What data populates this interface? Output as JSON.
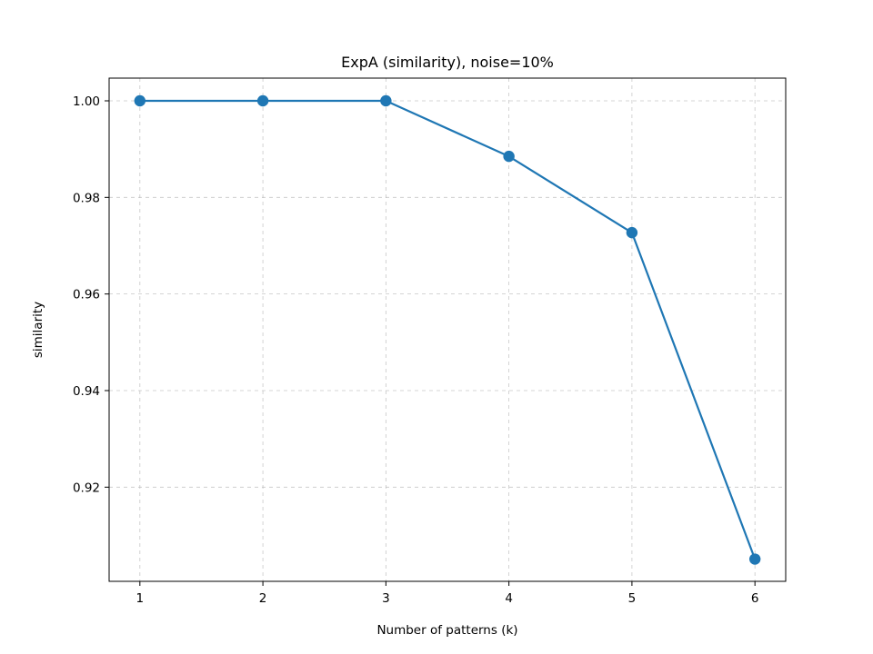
{
  "chart_data": {
    "type": "line",
    "title": "ExpA (similarity), noise=10%",
    "xlabel": "Number of patterns (k)",
    "ylabel": "similarity",
    "x": [
      1,
      2,
      3,
      4,
      5,
      6
    ],
    "series": [
      {
        "values": [
          1.0,
          1.0,
          1.0,
          0.9885,
          0.9727,
          0.9051
        ],
        "color": "#1f77b4",
        "marker": "circle"
      }
    ],
    "xticks": [
      1,
      2,
      3,
      4,
      5,
      6
    ],
    "xtick_labels": [
      "1",
      "2",
      "3",
      "4",
      "5",
      "6"
    ],
    "yticks": [
      0.92,
      0.94,
      0.96,
      0.98,
      1.0
    ],
    "ytick_labels": [
      "0.92",
      "0.94",
      "0.96",
      "0.98",
      "1.00"
    ],
    "xlim": [
      0.75,
      6.25
    ],
    "ylim": [
      0.9005,
      1.0047
    ],
    "grid": true
  }
}
